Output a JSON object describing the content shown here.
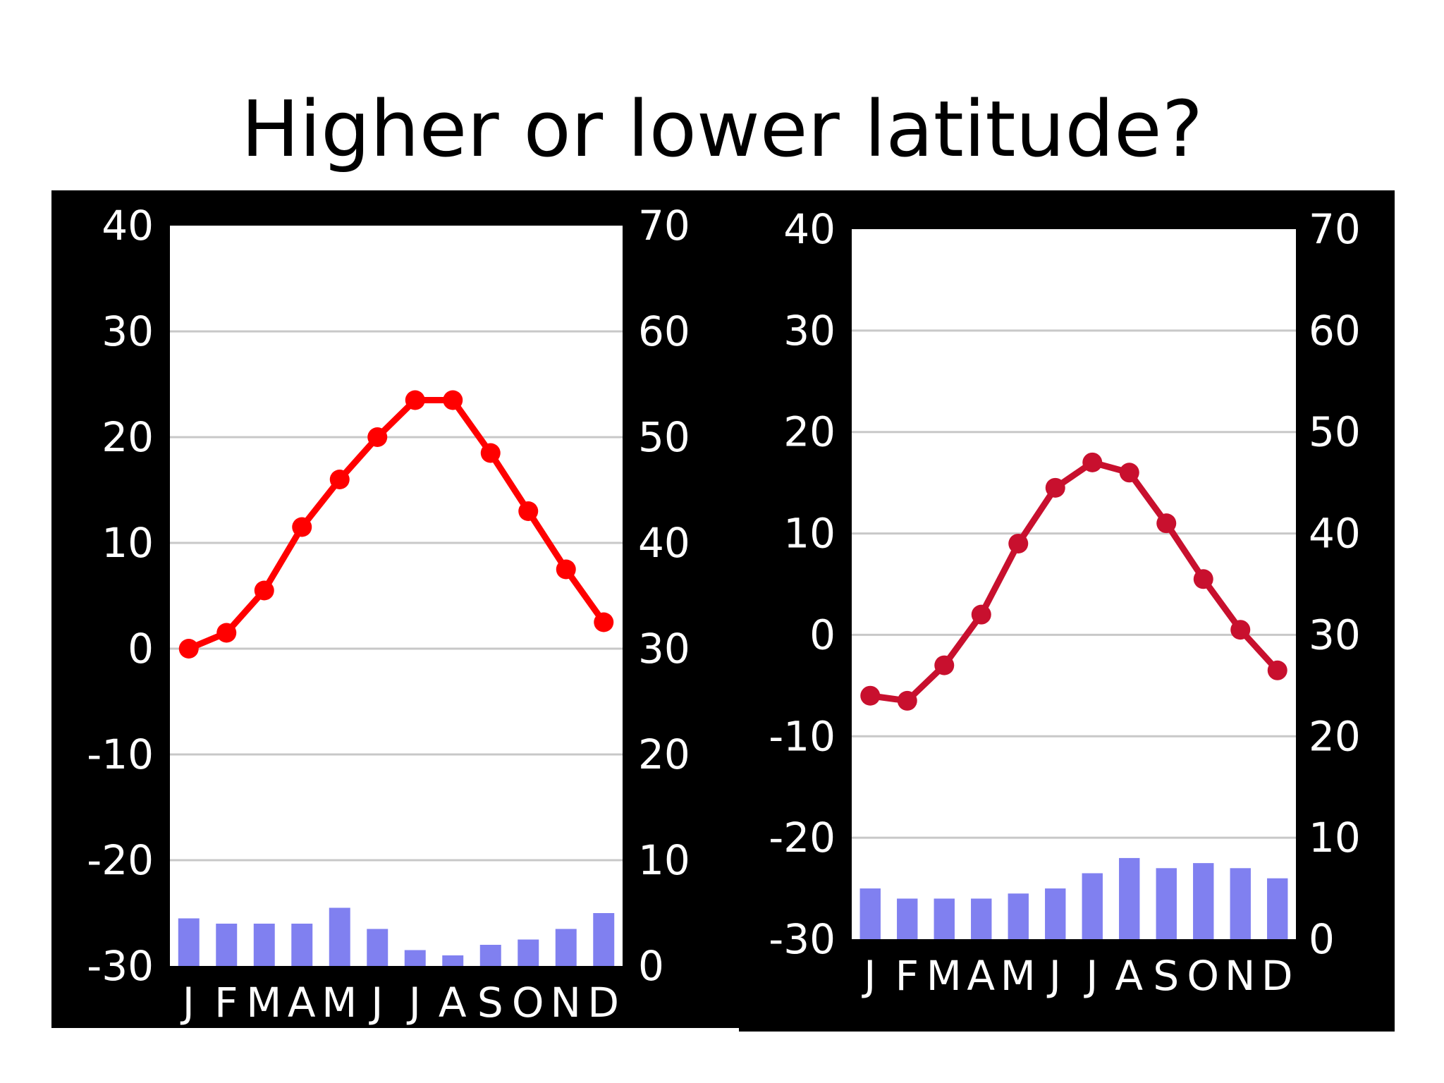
{
  "slide": {
    "title": "Higher or lower latitude?"
  },
  "colors": {
    "temperature_left": "#ff0000",
    "temperature_right": "#c8102e",
    "precipitation": "#8080f0",
    "background": "#000000",
    "plot_area": "#ffffff",
    "gridline": "#c8c8c8"
  },
  "chart_data": [
    {
      "type": "bar",
      "categories": [
        "J",
        "F",
        "M",
        "A",
        "M",
        "J",
        "J",
        "A",
        "S",
        "O",
        "N",
        "D"
      ],
      "series": [
        {
          "type": "line",
          "axis": "left",
          "values": [
            0,
            1.5,
            5.5,
            11.5,
            16,
            20,
            23.5,
            23.5,
            18.5,
            13,
            7.5,
            2.5
          ]
        },
        {
          "type": "bar",
          "axis": "right",
          "values": [
            4.5,
            4,
            4,
            4,
            5.5,
            3.5,
            1.5,
            1,
            2,
            2.5,
            3.5,
            5
          ]
        }
      ],
      "left_ticks": [
        "40",
        "30",
        "20",
        "10",
        "0",
        "-10",
        "-20",
        "-30"
      ],
      "right_ticks": [
        "70",
        "60",
        "50",
        "40",
        "30",
        "20",
        "10",
        "0"
      ],
      "ylim_left": [
        -30,
        40
      ],
      "ylim_right": [
        0,
        70
      ],
      "grid": true
    },
    {
      "type": "bar",
      "categories": [
        "J",
        "F",
        "M",
        "A",
        "M",
        "J",
        "J",
        "A",
        "S",
        "O",
        "N",
        "D"
      ],
      "series": [
        {
          "type": "line",
          "axis": "left",
          "values": [
            -6,
            -6.5,
            -3,
            2,
            9,
            14.5,
            17,
            16,
            11,
            5.5,
            0.5,
            -3.5
          ]
        },
        {
          "type": "bar",
          "axis": "right",
          "values": [
            5,
            4,
            4,
            4,
            4.5,
            5,
            6.5,
            8,
            7,
            7.5,
            7,
            6
          ]
        }
      ],
      "left_ticks": [
        "40",
        "30",
        "20",
        "10",
        "0",
        "-10",
        "-20",
        "-30"
      ],
      "right_ticks": [
        "70",
        "60",
        "50",
        "40",
        "30",
        "20",
        "10",
        "0"
      ],
      "ylim_left": [
        -30,
        40
      ],
      "ylim_right": [
        0,
        70
      ],
      "grid": true
    }
  ]
}
